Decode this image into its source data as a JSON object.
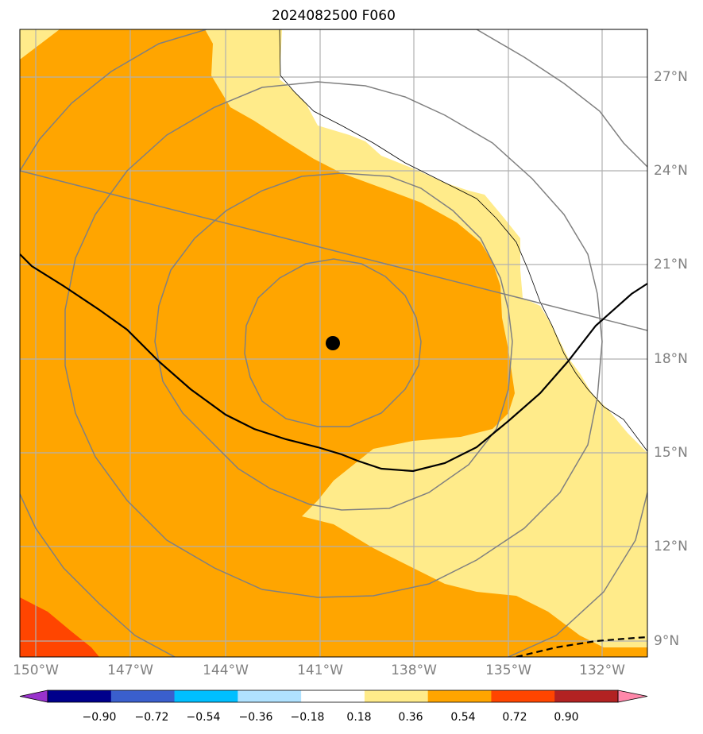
{
  "title": "2024082500 F060",
  "map": {
    "lon_ticks": [
      "150°W",
      "147°W",
      "144°W",
      "141°W",
      "138°W",
      "135°W",
      "132°W"
    ],
    "lat_ticks": [
      "27°N",
      "24°N",
      "21°N",
      "18°N",
      "15°N",
      "12°N",
      "9°N"
    ],
    "center_marker": {
      "lon": -140.6,
      "lat": 18.5
    },
    "fill_colors": {
      "pale_yellow": "#ffeb8a",
      "orange": "#ffa500",
      "red_orange": "#ff4500",
      "white": "#ffffff"
    },
    "line_colors": {
      "range_rings": "#808080",
      "track": "#000000",
      "grid": "#b0b0b0"
    }
  },
  "colorbar": {
    "labels": [
      "−0.90",
      "−0.72",
      "−0.54",
      "−0.36",
      "−0.18",
      "0.18",
      "0.36",
      "0.54",
      "0.72",
      "0.90"
    ],
    "colors": [
      "#9932cc",
      "#00008b",
      "#3a5fcd",
      "#00bfff",
      "#b0e2ff",
      "#ffffff",
      "#ffeb8a",
      "#ffa500",
      "#ff4500",
      "#b22222",
      "#ff88aa"
    ]
  }
}
